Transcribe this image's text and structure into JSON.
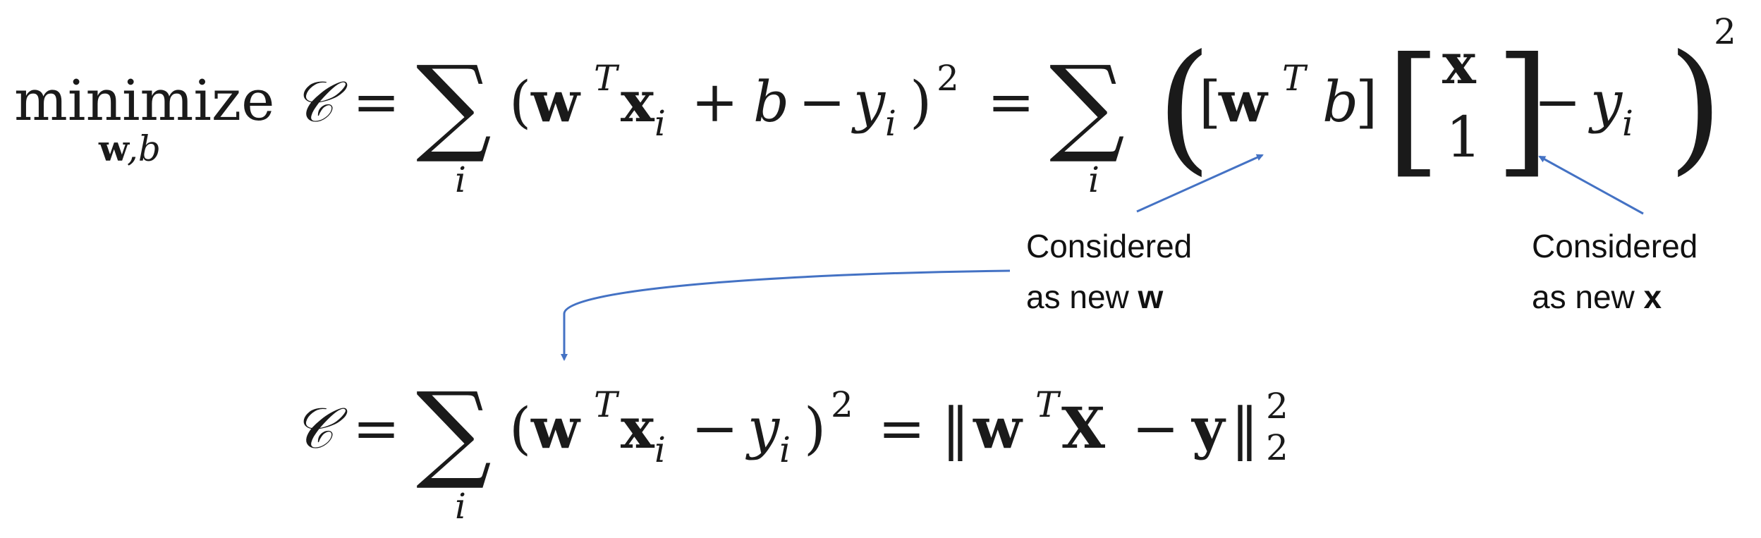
{
  "equation1": {
    "minimize": "minimize",
    "subscript_w": "w",
    "subscript_comma_b": ",b",
    "cost": "𝒞",
    "equals": "=",
    "sum": "∑",
    "sum_index": "i",
    "open_paren": "(",
    "w": "w",
    "T": "T",
    "x": "x",
    "i": "i",
    "plus": "+",
    "b": "b",
    "minus": "−",
    "y": "y",
    "close_paren": ")",
    "two": "2",
    "big_open_paren": "(",
    "big_close_paren": ")",
    "row_open": "[",
    "row_close": "]",
    "col_open": "[",
    "col_close": "]",
    "col_top": "x",
    "col_bottom": "1"
  },
  "equation2": {
    "cost": "𝒞",
    "equals": "=",
    "sum": "∑",
    "sum_index": "i",
    "open_paren": "(",
    "w": "w",
    "T": "T",
    "x": "x",
    "i": "i",
    "minus": "−",
    "y": "y",
    "close_paren": ")",
    "two": "2",
    "norm_open": "‖",
    "norm_close": "‖",
    "X": "X",
    "y_bold": "y",
    "sub2": "2",
    "sup2": "2"
  },
  "annotations": {
    "new_w": {
      "line1": "Considered",
      "line2_text": "as new ",
      "line2_bold": "w"
    },
    "new_x": {
      "line1": "Considered",
      "line2_text": "as new ",
      "line2_bold": "x"
    }
  },
  "colors": {
    "arrow": "#4472C4",
    "text": "#1a1a1a"
  }
}
